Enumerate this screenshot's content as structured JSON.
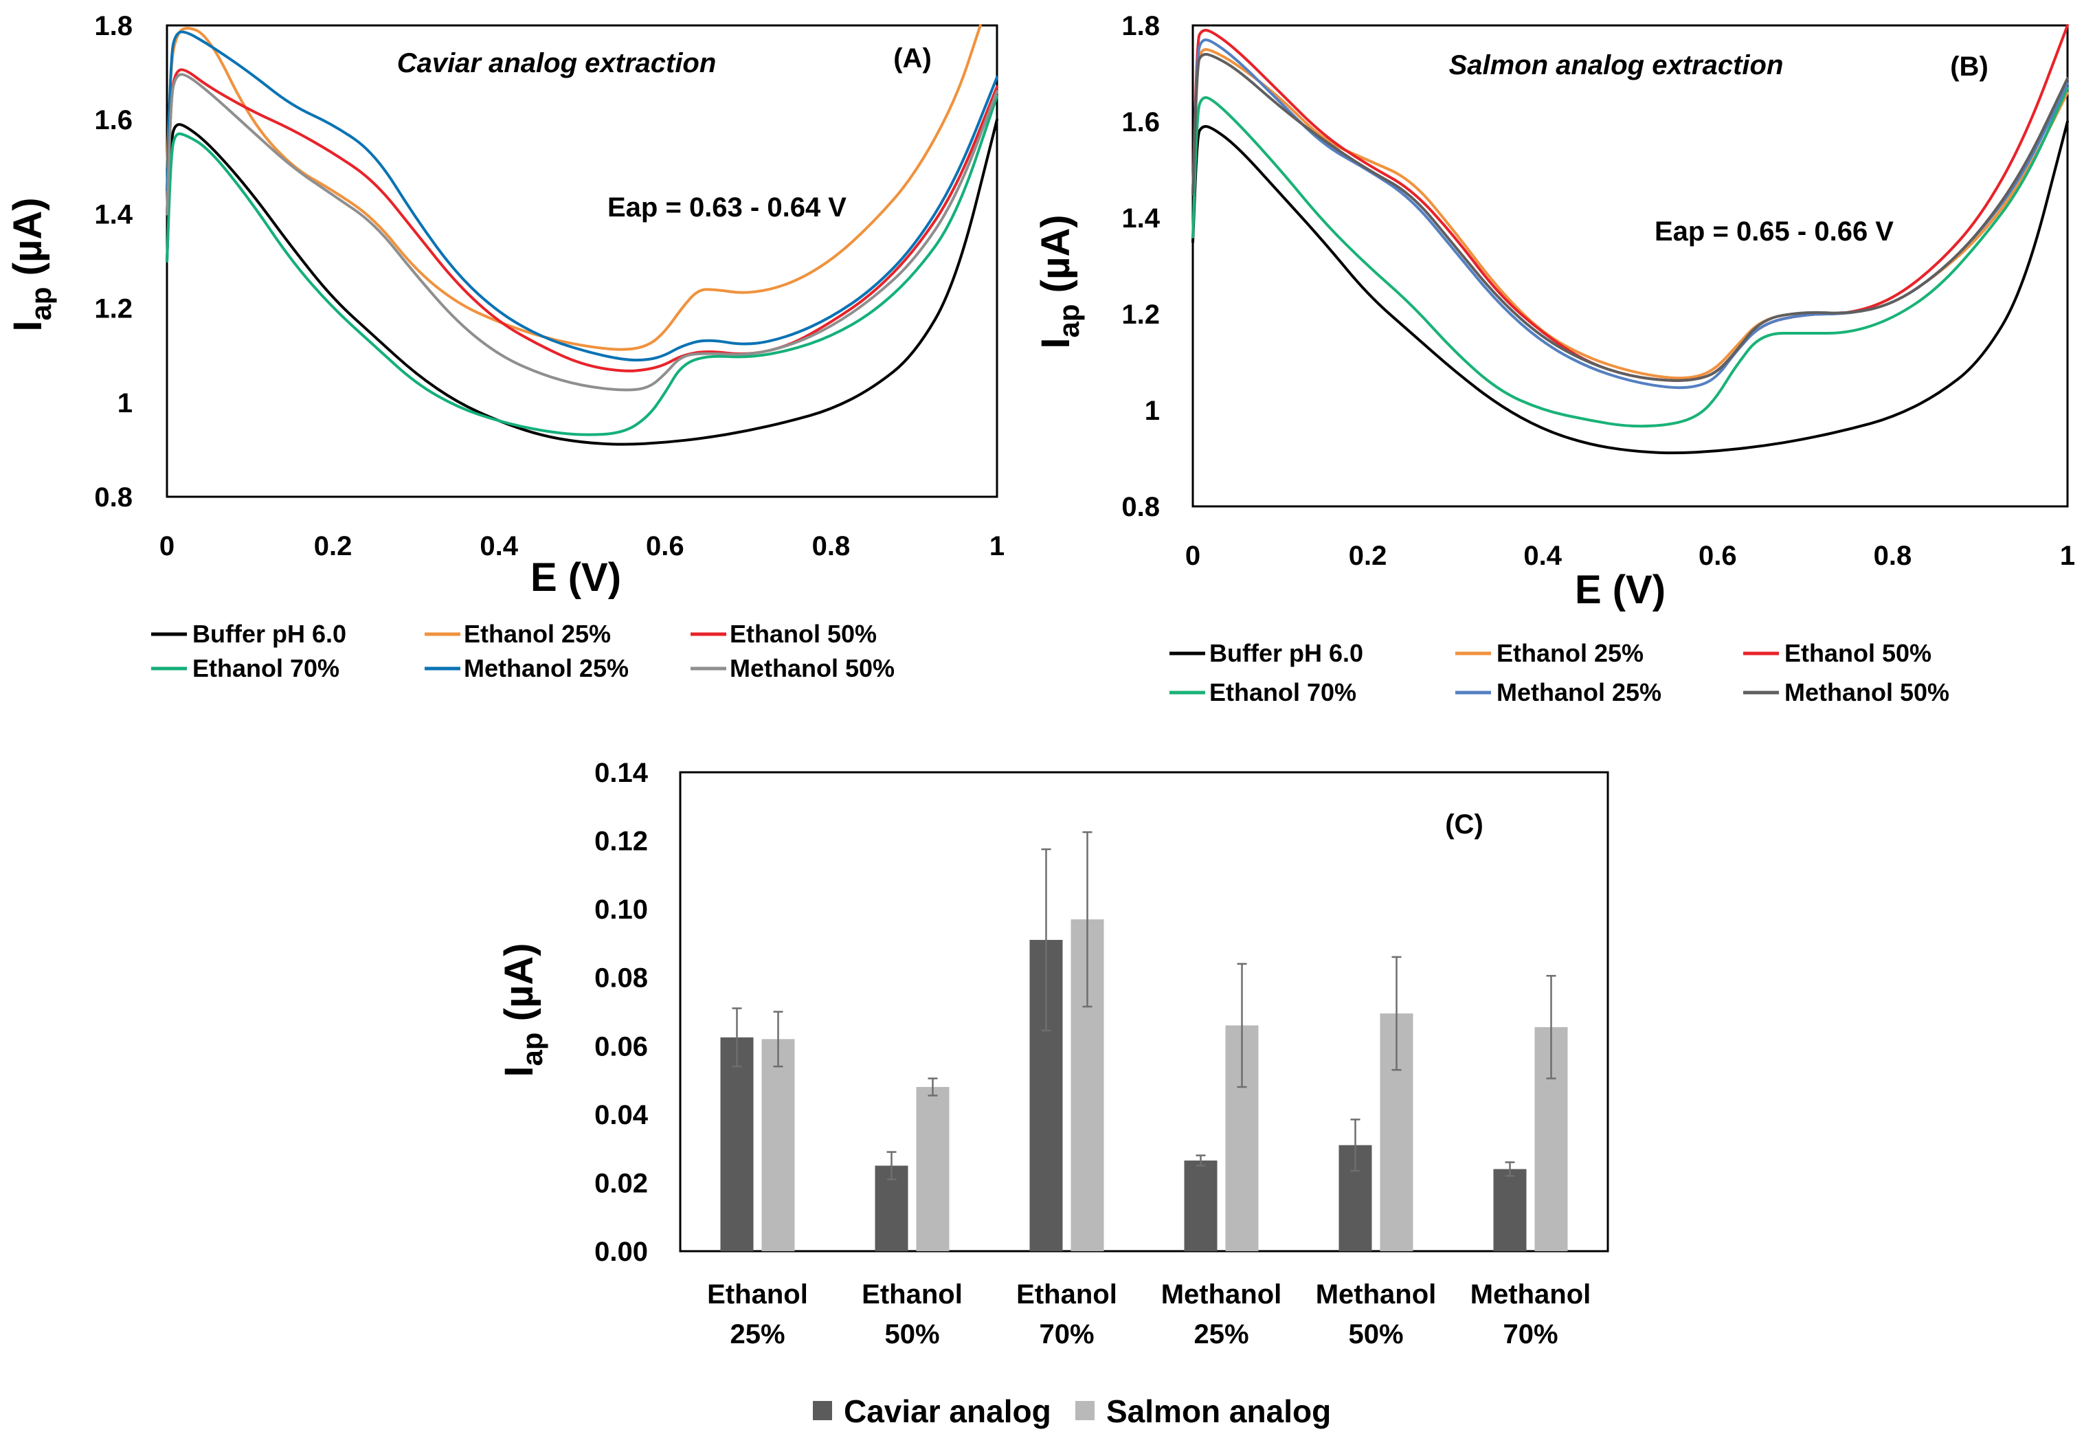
{
  "colors": {
    "buffer": "#000000",
    "ethanol25": "#f0923e",
    "ethanol50": "#e8232a",
    "ethanol70": "#14b07a",
    "methanol25": "#0a73b4",
    "methanol50": "#8f8f8f",
    "ethanol70_b": "#19b277",
    "methanol25_b": "#5480c1",
    "methanol50_b": "#5f5f5f",
    "caviar": "#5b5b5b",
    "salmon": "#b9b9b9",
    "errorbar": "#6e6e6e"
  },
  "chart_data": [
    {
      "id": "A",
      "type": "line",
      "title": "Caviar analog extraction",
      "panel_label": "(A)",
      "annotation": "Eap = 0.63 - 0.64 V",
      "xlabel": "E (V)",
      "ylabel_main": "I",
      "ylabel_sub": "ap",
      "ylabel_unit": " (µA)",
      "xlim": [
        0,
        1
      ],
      "ylim": [
        0.8,
        1.8
      ],
      "xticks": [
        "0",
        "0.2",
        "0.4",
        "0.6",
        "0.8",
        "1"
      ],
      "yticks": [
        "0.8",
        "1",
        "1.2",
        "1.4",
        "1.6",
        "1.8"
      ],
      "legend_position": "bottom",
      "series": [
        {
          "name": "Buffer pH 6.0",
          "color_key": "buffer",
          "x": [
            0,
            0.005,
            0.01,
            0.02,
            0.05,
            0.1,
            0.15,
            0.2,
            0.25,
            0.3,
            0.35,
            0.4,
            0.45,
            0.5,
            0.55,
            0.6,
            0.65,
            0.7,
            0.75,
            0.8,
            0.85,
            0.9,
            0.95,
            1.0
          ],
          "y": [
            1.3,
            1.56,
            1.59,
            1.59,
            1.55,
            1.45,
            1.33,
            1.22,
            1.14,
            1.06,
            1.0,
            0.96,
            0.93,
            0.915,
            0.91,
            0.915,
            0.925,
            0.94,
            0.96,
            0.985,
            1.03,
            1.1,
            1.25,
            1.6
          ]
        },
        {
          "name": "Ethanol 25%",
          "color_key": "ethanol25",
          "x": [
            0,
            0.005,
            0.01,
            0.02,
            0.05,
            0.1,
            0.15,
            0.2,
            0.25,
            0.3,
            0.35,
            0.4,
            0.45,
            0.5,
            0.55,
            0.58,
            0.6,
            0.62,
            0.64,
            0.66,
            0.7,
            0.75,
            0.8,
            0.85,
            0.9,
            0.95,
            0.98
          ],
          "y": [
            1.5,
            1.72,
            1.77,
            1.82,
            1.78,
            1.6,
            1.5,
            1.45,
            1.39,
            1.28,
            1.21,
            1.17,
            1.14,
            1.12,
            1.11,
            1.12,
            1.15,
            1.2,
            1.24,
            1.24,
            1.23,
            1.25,
            1.3,
            1.38,
            1.48,
            1.64,
            1.81
          ]
        },
        {
          "name": "Ethanol 50%",
          "color_key": "ethanol50",
          "x": [
            0,
            0.005,
            0.01,
            0.02,
            0.05,
            0.1,
            0.15,
            0.2,
            0.25,
            0.3,
            0.35,
            0.4,
            0.45,
            0.5,
            0.55,
            0.58,
            0.6,
            0.62,
            0.65,
            0.7,
            0.75,
            0.8,
            0.85,
            0.9,
            0.95,
            1.0
          ],
          "y": [
            1.4,
            1.65,
            1.7,
            1.71,
            1.67,
            1.62,
            1.58,
            1.53,
            1.47,
            1.36,
            1.25,
            1.17,
            1.12,
            1.08,
            1.065,
            1.07,
            1.08,
            1.1,
            1.11,
            1.1,
            1.12,
            1.17,
            1.23,
            1.32,
            1.45,
            1.67
          ]
        },
        {
          "name": "Ethanol 70%",
          "color_key": "ethanol70",
          "x": [
            0,
            0.005,
            0.01,
            0.02,
            0.05,
            0.1,
            0.15,
            0.2,
            0.25,
            0.3,
            0.35,
            0.4,
            0.45,
            0.5,
            0.55,
            0.58,
            0.6,
            0.62,
            0.65,
            0.7,
            0.75,
            0.8,
            0.85,
            0.9,
            0.95,
            1.0
          ],
          "y": [
            1.3,
            1.53,
            1.57,
            1.57,
            1.54,
            1.43,
            1.3,
            1.2,
            1.12,
            1.04,
            0.99,
            0.96,
            0.94,
            0.93,
            0.935,
            0.97,
            1.02,
            1.08,
            1.1,
            1.095,
            1.11,
            1.14,
            1.19,
            1.27,
            1.39,
            1.65
          ]
        },
        {
          "name": "Methanol 25%",
          "color_key": "methanol25",
          "x": [
            0,
            0.005,
            0.01,
            0.02,
            0.05,
            0.1,
            0.15,
            0.2,
            0.25,
            0.3,
            0.35,
            0.4,
            0.45,
            0.5,
            0.55,
            0.58,
            0.6,
            0.62,
            0.65,
            0.7,
            0.75,
            0.8,
            0.85,
            0.9,
            0.95,
            1.0
          ],
          "y": [
            1.45,
            1.74,
            1.78,
            1.79,
            1.76,
            1.7,
            1.63,
            1.59,
            1.53,
            1.39,
            1.27,
            1.19,
            1.14,
            1.11,
            1.09,
            1.09,
            1.1,
            1.12,
            1.135,
            1.12,
            1.14,
            1.18,
            1.24,
            1.33,
            1.47,
            1.69
          ]
        },
        {
          "name": "Methanol 50%",
          "color_key": "methanol50",
          "x": [
            0,
            0.005,
            0.01,
            0.02,
            0.05,
            0.1,
            0.15,
            0.2,
            0.25,
            0.3,
            0.35,
            0.4,
            0.45,
            0.5,
            0.55,
            0.58,
            0.6,
            0.62,
            0.65,
            0.7,
            0.75,
            0.8,
            0.85,
            0.9,
            0.95,
            1.0
          ],
          "y": [
            1.4,
            1.65,
            1.69,
            1.7,
            1.66,
            1.58,
            1.5,
            1.44,
            1.38,
            1.27,
            1.17,
            1.1,
            1.06,
            1.035,
            1.025,
            1.03,
            1.06,
            1.1,
            1.105,
            1.1,
            1.12,
            1.16,
            1.22,
            1.3,
            1.43,
            1.66
          ]
        }
      ]
    },
    {
      "id": "B",
      "type": "line",
      "title": "Salmon analog extraction",
      "panel_label": "(B)",
      "annotation": "Eap = 0.65 - 0.66 V",
      "xlabel": "E (V)",
      "ylabel_main": "I",
      "ylabel_sub": "ap",
      "ylabel_unit": " (µA)",
      "xlim": [
        0,
        1
      ],
      "ylim": [
        0.8,
        1.8
      ],
      "xticks": [
        "0",
        "0.2",
        "0.4",
        "0.6",
        "0.8",
        "1"
      ],
      "yticks": [
        "0.8",
        "1",
        "1.2",
        "1.4",
        "1.6",
        "1.8"
      ],
      "legend_position": "bottom",
      "series": [
        {
          "name": "Buffer pH 6.0",
          "color_key": "buffer",
          "x": [
            0,
            0.005,
            0.01,
            0.02,
            0.05,
            0.1,
            0.15,
            0.2,
            0.25,
            0.3,
            0.35,
            0.4,
            0.45,
            0.5,
            0.55,
            0.6,
            0.65,
            0.7,
            0.75,
            0.8,
            0.85,
            0.9,
            0.95,
            1.0
          ],
          "y": [
            1.35,
            1.57,
            1.59,
            1.59,
            1.55,
            1.45,
            1.35,
            1.24,
            1.16,
            1.08,
            1.01,
            0.96,
            0.93,
            0.915,
            0.91,
            0.915,
            0.925,
            0.94,
            0.96,
            0.985,
            1.03,
            1.1,
            1.25,
            1.6
          ]
        },
        {
          "name": "Ethanol 25%",
          "color_key": "ethanol25",
          "x": [
            0,
            0.005,
            0.01,
            0.02,
            0.05,
            0.1,
            0.15,
            0.2,
            0.25,
            0.3,
            0.35,
            0.4,
            0.45,
            0.5,
            0.55,
            0.58,
            0.6,
            0.62,
            0.65,
            0.7,
            0.75,
            0.8,
            0.85,
            0.9,
            0.95,
            1.0
          ],
          "y": [
            1.45,
            1.72,
            1.75,
            1.75,
            1.72,
            1.65,
            1.56,
            1.52,
            1.48,
            1.37,
            1.25,
            1.16,
            1.11,
            1.08,
            1.065,
            1.07,
            1.09,
            1.13,
            1.19,
            1.205,
            1.2,
            1.22,
            1.28,
            1.36,
            1.48,
            1.66
          ]
        },
        {
          "name": "Ethanol 50%",
          "color_key": "ethanol50",
          "x": [
            0,
            0.005,
            0.01,
            0.02,
            0.05,
            0.1,
            0.15,
            0.2,
            0.25,
            0.3,
            0.35,
            0.4,
            0.45,
            0.5,
            0.55,
            0.58,
            0.6,
            0.62,
            0.65,
            0.7,
            0.75,
            0.8,
            0.85,
            0.9,
            0.95,
            1.0
          ],
          "y": [
            1.45,
            1.77,
            1.79,
            1.79,
            1.75,
            1.66,
            1.57,
            1.51,
            1.46,
            1.36,
            1.24,
            1.16,
            1.1,
            1.07,
            1.06,
            1.065,
            1.08,
            1.12,
            1.18,
            1.2,
            1.2,
            1.23,
            1.3,
            1.4,
            1.56,
            1.8
          ]
        },
        {
          "name": "Ethanol 70%",
          "color_key": "ethanol70_b",
          "x": [
            0,
            0.005,
            0.01,
            0.02,
            0.05,
            0.1,
            0.15,
            0.2,
            0.25,
            0.3,
            0.35,
            0.4,
            0.45,
            0.5,
            0.55,
            0.58,
            0.6,
            0.62,
            0.65,
            0.7,
            0.75,
            0.8,
            0.85,
            0.9,
            0.95,
            1.0
          ],
          "y": [
            1.36,
            1.62,
            1.65,
            1.65,
            1.6,
            1.5,
            1.39,
            1.3,
            1.22,
            1.12,
            1.04,
            1.0,
            0.98,
            0.965,
            0.97,
            0.99,
            1.03,
            1.09,
            1.16,
            1.16,
            1.16,
            1.19,
            1.25,
            1.35,
            1.47,
            1.67
          ]
        },
        {
          "name": "Methanol 25%",
          "color_key": "methanol25_b",
          "x": [
            0,
            0.005,
            0.01,
            0.02,
            0.05,
            0.1,
            0.15,
            0.2,
            0.25,
            0.3,
            0.35,
            0.4,
            0.45,
            0.5,
            0.55,
            0.58,
            0.6,
            0.62,
            0.65,
            0.7,
            0.75,
            0.8,
            0.85,
            0.9,
            0.95,
            1.0
          ],
          "y": [
            1.45,
            1.74,
            1.77,
            1.77,
            1.73,
            1.64,
            1.55,
            1.5,
            1.44,
            1.33,
            1.22,
            1.14,
            1.09,
            1.06,
            1.045,
            1.05,
            1.07,
            1.12,
            1.18,
            1.2,
            1.2,
            1.22,
            1.28,
            1.37,
            1.49,
            1.68
          ]
        },
        {
          "name": "Methanol 50%",
          "color_key": "methanol50_b",
          "x": [
            0,
            0.005,
            0.01,
            0.02,
            0.05,
            0.1,
            0.15,
            0.2,
            0.25,
            0.3,
            0.35,
            0.4,
            0.45,
            0.5,
            0.55,
            0.58,
            0.6,
            0.62,
            0.65,
            0.7,
            0.75,
            0.8,
            0.85,
            0.9,
            0.95,
            1.0
          ],
          "y": [
            1.45,
            1.72,
            1.74,
            1.74,
            1.71,
            1.63,
            1.56,
            1.5,
            1.45,
            1.34,
            1.23,
            1.15,
            1.1,
            1.07,
            1.06,
            1.065,
            1.08,
            1.12,
            1.19,
            1.205,
            1.2,
            1.22,
            1.28,
            1.37,
            1.5,
            1.69
          ]
        }
      ]
    },
    {
      "id": "C",
      "type": "bar",
      "panel_label": "(C)",
      "xlabel": "",
      "ylabel_main": "I",
      "ylabel_sub": "ap",
      "ylabel_unit": " (µA)",
      "ylim": [
        0,
        0.14
      ],
      "yticks": [
        "0.00",
        "0.02",
        "0.04",
        "0.06",
        "0.08",
        "0.10",
        "0.12",
        "0.14"
      ],
      "legend_position": "bottom",
      "categories": [
        [
          "Ethanol",
          "25%"
        ],
        [
          "Ethanol",
          "50%"
        ],
        [
          "Ethanol",
          "70%"
        ],
        [
          "Methanol",
          "25%"
        ],
        [
          "Methanol",
          "50%"
        ],
        [
          "Methanol",
          "70%"
        ]
      ],
      "series": [
        {
          "name": "Caviar analog",
          "color_key": "caviar",
          "values": [
            0.0625,
            0.025,
            0.091,
            0.0265,
            0.031,
            0.024
          ],
          "errors": [
            0.0085,
            0.004,
            0.0265,
            0.0015,
            0.0075,
            0.002
          ]
        },
        {
          "name": "Salmon analog",
          "color_key": "salmon",
          "values": [
            0.062,
            0.048,
            0.097,
            0.066,
            0.0695,
            0.0655
          ],
          "errors": [
            0.008,
            0.0025,
            0.0255,
            0.018,
            0.0165,
            0.015
          ]
        }
      ]
    }
  ]
}
